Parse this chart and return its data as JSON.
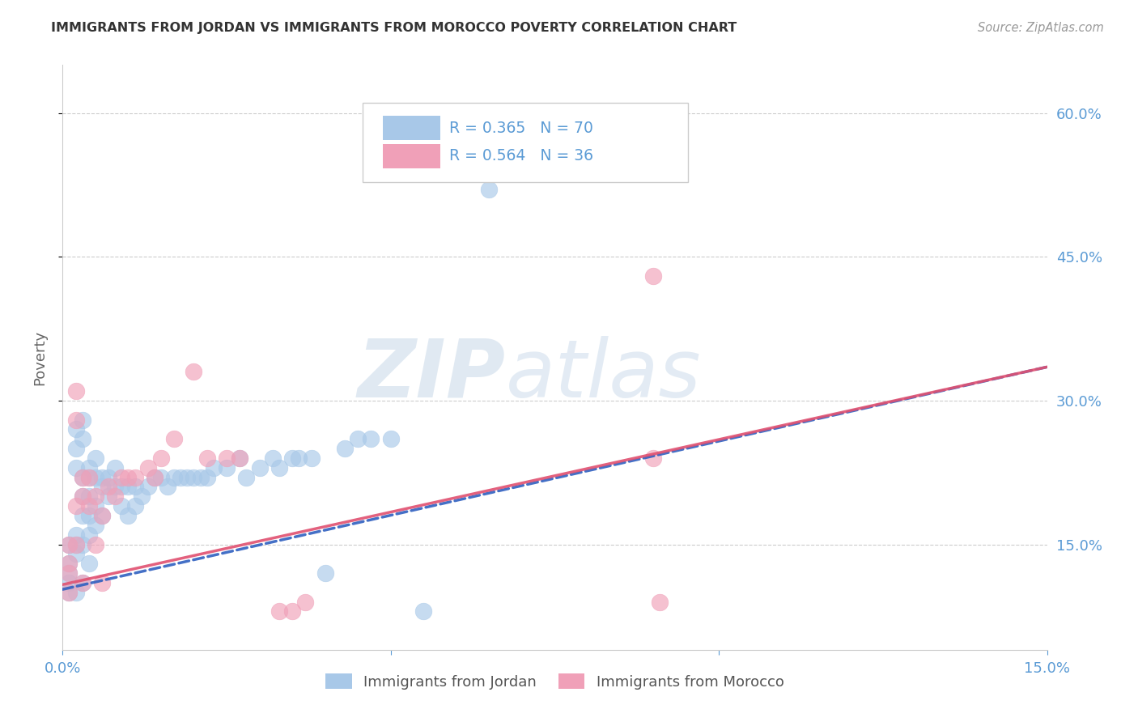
{
  "title": "IMMIGRANTS FROM JORDAN VS IMMIGRANTS FROM MOROCCO POVERTY CORRELATION CHART",
  "source": "Source: ZipAtlas.com",
  "ylabel": "Poverty",
  "watermark_zip": "ZIP",
  "watermark_atlas": "atlas",
  "xlim": [
    0.0,
    0.15
  ],
  "ylim": [
    0.04,
    0.65
  ],
  "yticks": [
    0.15,
    0.3,
    0.45,
    0.6
  ],
  "ytick_labels": [
    "15.0%",
    "30.0%",
    "45.0%",
    "60.0%"
  ],
  "xticks": [
    0.0,
    0.05,
    0.1,
    0.15
  ],
  "xtick_labels": [
    "0.0%",
    "",
    "",
    "15.0%"
  ],
  "jordan_color": "#a8c8e8",
  "morocco_color": "#f0a0b8",
  "jordan_line_color": "#3060c0",
  "morocco_line_color": "#e05070",
  "jordan_R": 0.365,
  "jordan_N": 70,
  "morocco_R": 0.564,
  "morocco_N": 36,
  "jordan_line_y0": 0.103,
  "jordan_line_y1": 0.335,
  "morocco_line_y0": 0.108,
  "morocco_line_y1": 0.335,
  "jordan_scatter_x": [
    0.001,
    0.001,
    0.001,
    0.001,
    0.001,
    0.002,
    0.002,
    0.002,
    0.002,
    0.002,
    0.002,
    0.002,
    0.003,
    0.003,
    0.003,
    0.003,
    0.003,
    0.003,
    0.003,
    0.004,
    0.004,
    0.004,
    0.004,
    0.004,
    0.004,
    0.005,
    0.005,
    0.005,
    0.005,
    0.006,
    0.006,
    0.006,
    0.007,
    0.007,
    0.008,
    0.008,
    0.009,
    0.009,
    0.01,
    0.01,
    0.011,
    0.011,
    0.012,
    0.013,
    0.014,
    0.015,
    0.016,
    0.017,
    0.018,
    0.019,
    0.02,
    0.021,
    0.022,
    0.023,
    0.025,
    0.027,
    0.028,
    0.03,
    0.032,
    0.033,
    0.035,
    0.036,
    0.038,
    0.04,
    0.043,
    0.045,
    0.047,
    0.05,
    0.055,
    0.065
  ],
  "jordan_scatter_y": [
    0.15,
    0.13,
    0.12,
    0.11,
    0.1,
    0.27,
    0.25,
    0.23,
    0.16,
    0.15,
    0.14,
    0.1,
    0.28,
    0.26,
    0.22,
    0.2,
    0.18,
    0.15,
    0.11,
    0.23,
    0.22,
    0.2,
    0.18,
    0.16,
    0.13,
    0.24,
    0.22,
    0.19,
    0.17,
    0.22,
    0.21,
    0.18,
    0.22,
    0.2,
    0.23,
    0.21,
    0.21,
    0.19,
    0.21,
    0.18,
    0.21,
    0.19,
    0.2,
    0.21,
    0.22,
    0.22,
    0.21,
    0.22,
    0.22,
    0.22,
    0.22,
    0.22,
    0.22,
    0.23,
    0.23,
    0.24,
    0.22,
    0.23,
    0.24,
    0.23,
    0.24,
    0.24,
    0.24,
    0.12,
    0.25,
    0.26,
    0.26,
    0.26,
    0.08,
    0.52
  ],
  "morocco_scatter_x": [
    0.001,
    0.001,
    0.001,
    0.001,
    0.002,
    0.002,
    0.002,
    0.002,
    0.003,
    0.003,
    0.003,
    0.004,
    0.004,
    0.005,
    0.005,
    0.006,
    0.006,
    0.007,
    0.008,
    0.009,
    0.01,
    0.011,
    0.013,
    0.014,
    0.015,
    0.017,
    0.02,
    0.022,
    0.025,
    0.027,
    0.033,
    0.035,
    0.037,
    0.09,
    0.09,
    0.091
  ],
  "morocco_scatter_y": [
    0.15,
    0.13,
    0.12,
    0.1,
    0.31,
    0.28,
    0.19,
    0.15,
    0.22,
    0.2,
    0.11,
    0.22,
    0.19,
    0.2,
    0.15,
    0.18,
    0.11,
    0.21,
    0.2,
    0.22,
    0.22,
    0.22,
    0.23,
    0.22,
    0.24,
    0.26,
    0.33,
    0.24,
    0.24,
    0.24,
    0.08,
    0.08,
    0.09,
    0.43,
    0.24,
    0.09
  ],
  "background_color": "#ffffff",
  "grid_color": "#cccccc",
  "tick_color": "#5b9bd5",
  "title_color": "#333333",
  "jordan_legend_label": "Immigrants from Jordan",
  "morocco_legend_label": "Immigrants from Morocco"
}
